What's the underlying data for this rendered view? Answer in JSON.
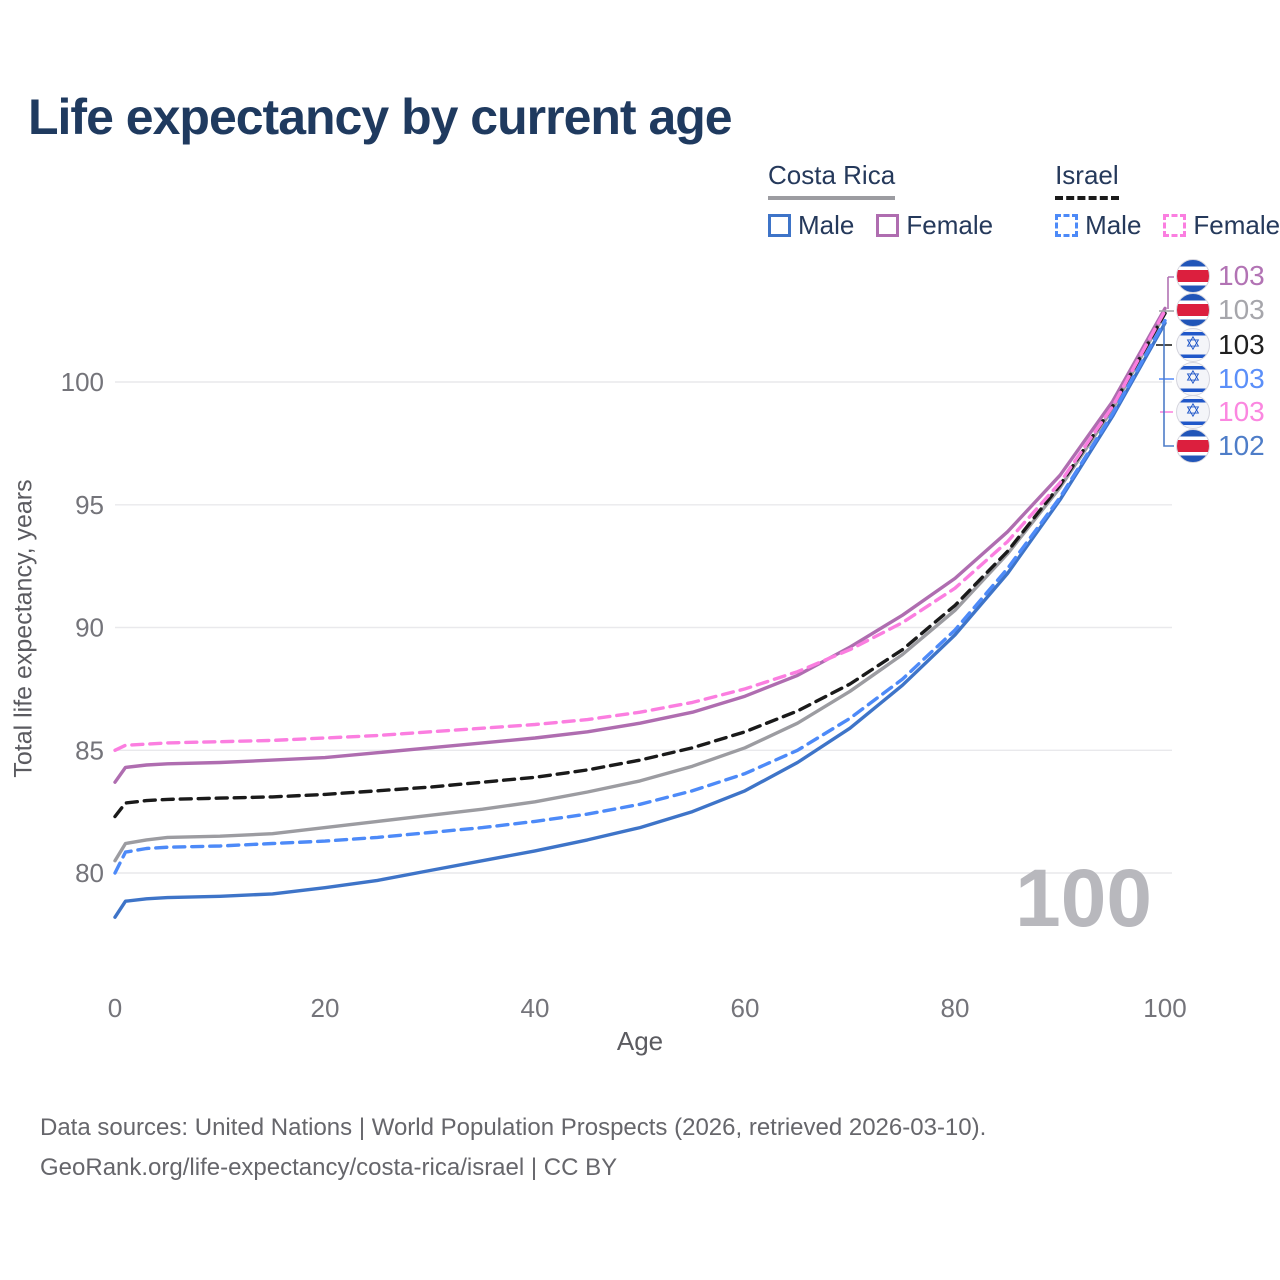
{
  "title": "Life expectancy by current age",
  "legend": {
    "groups": [
      {
        "label": "Costa Rica",
        "items": [
          {
            "label": "Male"
          },
          {
            "label": "Female"
          }
        ]
      },
      {
        "label": "Israel",
        "items": [
          {
            "label": "Male"
          },
          {
            "label": "Female"
          }
        ]
      }
    ]
  },
  "chart_data": {
    "type": "line",
    "title": "Life expectancy by current age",
    "xlabel": "Age",
    "ylabel": "Total life expectancy, years",
    "x_ticks": [
      0,
      20,
      40,
      60,
      80,
      100
    ],
    "y_ticks": [
      80,
      85,
      90,
      95,
      100
    ],
    "xlim": [
      0,
      100
    ],
    "ylim": [
      78,
      104
    ],
    "grid": true,
    "legend_position": "top-right",
    "watermark": "100",
    "ages": [
      0,
      1,
      3,
      5,
      10,
      15,
      20,
      25,
      30,
      35,
      40,
      45,
      50,
      55,
      60,
      65,
      70,
      75,
      80,
      85,
      90,
      95,
      100
    ],
    "series": [
      {
        "id": "costa-rica-male",
        "name": "Costa Rica Male",
        "style": "solid",
        "color": "#3E74C8",
        "values": [
          78.2,
          78.85,
          78.95,
          79.0,
          79.05,
          79.15,
          79.4,
          79.7,
          80.1,
          80.5,
          80.9,
          81.35,
          81.85,
          82.5,
          83.35,
          84.5,
          85.9,
          87.65,
          89.7,
          92.2,
          95.2,
          98.6,
          102.4
        ]
      },
      {
        "id": "costa-rica-female",
        "name": "Costa Rica Female",
        "style": "solid",
        "color": "#AF6DB0",
        "values": [
          83.7,
          84.3,
          84.4,
          84.45,
          84.5,
          84.6,
          84.7,
          84.9,
          85.1,
          85.3,
          85.5,
          85.75,
          86.1,
          86.55,
          87.2,
          88.05,
          89.2,
          90.5,
          92.0,
          93.9,
          96.2,
          99.2,
          103.0
        ]
      },
      {
        "id": "costa-rica-total",
        "name": "Costa Rica",
        "style": "solid",
        "color": "#9C9CA1",
        "values": [
          80.5,
          81.2,
          81.35,
          81.45,
          81.5,
          81.6,
          81.85,
          82.1,
          82.35,
          82.6,
          82.9,
          83.3,
          83.75,
          84.35,
          85.1,
          86.1,
          87.4,
          88.9,
          90.7,
          93.0,
          95.7,
          98.9,
          102.8
        ]
      },
      {
        "id": "israel-male",
        "name": "Israel Male",
        "style": "dashed",
        "color": "#4D8AF8",
        "values": [
          80.0,
          80.85,
          81.0,
          81.05,
          81.1,
          81.2,
          81.3,
          81.45,
          81.65,
          81.85,
          82.1,
          82.4,
          82.8,
          83.35,
          84.05,
          85.0,
          86.3,
          87.9,
          89.9,
          92.4,
          95.3,
          98.7,
          102.5
        ]
      },
      {
        "id": "israel-female",
        "name": "Israel Female",
        "style": "dashed",
        "color": "#FB7EE0",
        "values": [
          85.0,
          85.2,
          85.25,
          85.3,
          85.35,
          85.4,
          85.5,
          85.6,
          85.75,
          85.9,
          86.05,
          86.25,
          86.55,
          86.95,
          87.5,
          88.2,
          89.1,
          90.2,
          91.6,
          93.5,
          95.9,
          99.0,
          102.9
        ]
      },
      {
        "id": "israel-total",
        "name": "Israel",
        "style": "dashed",
        "color": "#1A1A1A",
        "values": [
          82.3,
          82.85,
          82.95,
          83.0,
          83.05,
          83.1,
          83.2,
          83.35,
          83.5,
          83.7,
          83.9,
          84.2,
          84.6,
          85.1,
          85.75,
          86.6,
          87.7,
          89.1,
          90.9,
          93.1,
          95.8,
          99.0,
          102.8
        ]
      }
    ],
    "end_labels": [
      {
        "value": "103",
        "flag": "costa-rica",
        "color": "#B273B4",
        "series": "Costa Rica Female"
      },
      {
        "value": "103",
        "flag": "costa-rica",
        "color": "#A6A6AB",
        "series": "Costa Rica"
      },
      {
        "value": "103",
        "flag": "israel",
        "color": "#1F1F1F",
        "series": "Israel"
      },
      {
        "value": "103",
        "flag": "israel",
        "color": "#5B8FF9",
        "series": "Israel Male"
      },
      {
        "value": "103",
        "flag": "israel",
        "color": "#FB87E0",
        "series": "Israel Female"
      },
      {
        "value": "102",
        "flag": "costa-rica",
        "color": "#4E7DC8",
        "series": "Costa Rica Male"
      }
    ]
  },
  "footer": {
    "line1": "Data sources: United Nations | World Population Prospects (2026, retrieved 2026-03-10).",
    "line2": "GeoRank.org/life-expectancy/costa-rica/israel | CC BY"
  }
}
